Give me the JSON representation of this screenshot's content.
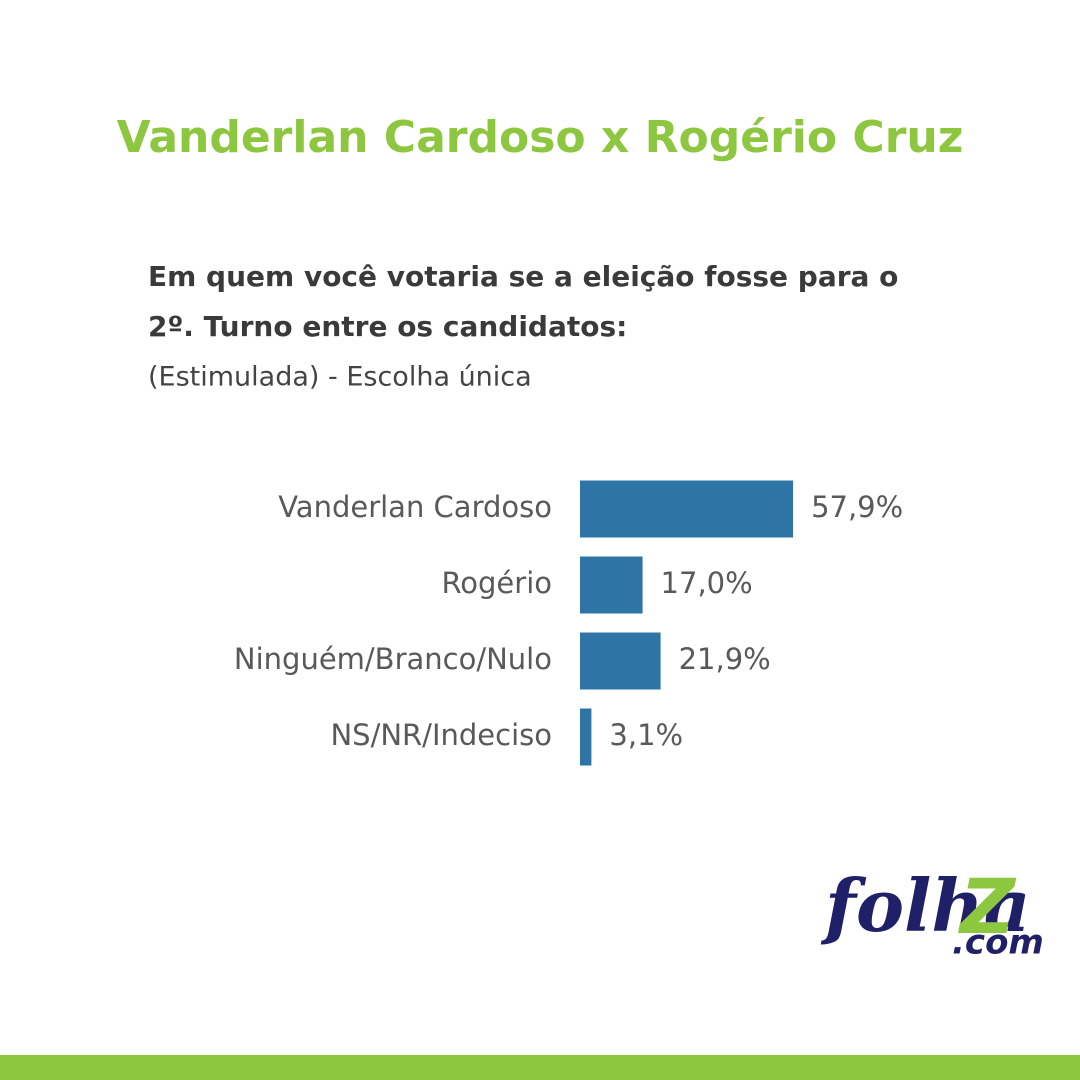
{
  "chart_data": {
    "type": "barh",
    "title": "Vanderlan Cardoso x Rogério Cruz",
    "question": [
      "Em quem você votaria se a eleição fosse para o",
      "2º. Turno entre os candidatos:"
    ],
    "subtitle": "(Estimulada) - Escolha única",
    "categories": [
      "Vanderlan Cardoso",
      "Rogério",
      "Ninguém/Branco/Nulo",
      "NS/NR/Indeciso"
    ],
    "values": [
      57.9,
      17.0,
      21.9,
      3.1
    ],
    "value_labels": [
      "57,9%",
      "17,0%",
      "21,9%",
      "3,1%"
    ],
    "color": "#2e75a6"
  },
  "logo": {
    "name": "folha",
    "mark": "Z",
    "domain": ".com"
  }
}
